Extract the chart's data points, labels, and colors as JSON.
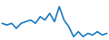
{
  "y_values": [
    5,
    4.5,
    5,
    3.5,
    5,
    5.5,
    6,
    5,
    7,
    6,
    8,
    5.5,
    10,
    6,
    4,
    1,
    2.5,
    1,
    2,
    1.5,
    2.5,
    1.5,
    2
  ],
  "line_color": "#1a7abf",
  "linewidth": 1.2,
  "background_color": "#ffffff",
  "ylim": [
    0,
    12
  ],
  "figwidth": 1.2,
  "figheight": 0.45,
  "dpi": 100
}
